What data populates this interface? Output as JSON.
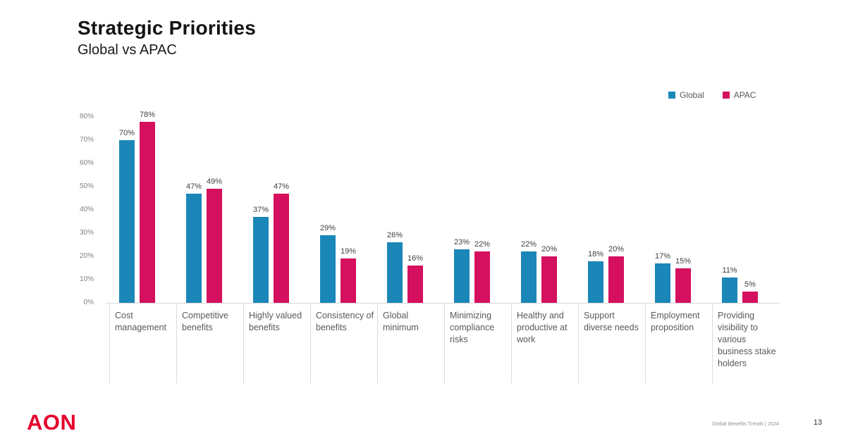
{
  "slide": {
    "title": "Strategic Priorities",
    "subtitle": "Global vs APAC",
    "footer": {
      "brand": "AON",
      "source": "Global Benefits Trends | 2024",
      "page_number": "13"
    }
  },
  "colors": {
    "global_bar": "#1B87B8",
    "apac_bar": "#D5105F",
    "brand_red": "#E4002B",
    "axis_text": "#808080",
    "category_text": "#595959",
    "value_text": "#404040",
    "line_gray": "#DCDCDC"
  },
  "legend": [
    {
      "label": "Global",
      "color_key": "global_bar"
    },
    {
      "label": "APAC",
      "color_key": "apac_bar"
    }
  ],
  "chart_data": {
    "type": "bar",
    "title": "Strategic Priorities",
    "subtitle": "Global vs APAC",
    "categories": [
      "Cost management",
      "Competitive benefits",
      "Highly valued benefits",
      "Consistency of benefits",
      "Global minimum",
      "Minimizing compliance risks",
      "Healthy and productive at work",
      "Support diverse needs",
      "Employment proposition",
      "Providing visibility to various business stake holders"
    ],
    "series": [
      {
        "name": "Global",
        "values": [
          70,
          47,
          37,
          29,
          26,
          23,
          22,
          18,
          17,
          11
        ]
      },
      {
        "name": "APAC",
        "values": [
          78,
          49,
          47,
          19,
          16,
          22,
          20,
          20,
          15,
          5
        ]
      }
    ],
    "value_suffix": "%",
    "y_ticks": [
      0,
      10,
      20,
      30,
      40,
      50,
      60,
      70,
      80
    ],
    "y_tick_suffix": "%",
    "ylim": [
      0,
      80
    ],
    "grid": false,
    "legend_position": "top-right"
  }
}
